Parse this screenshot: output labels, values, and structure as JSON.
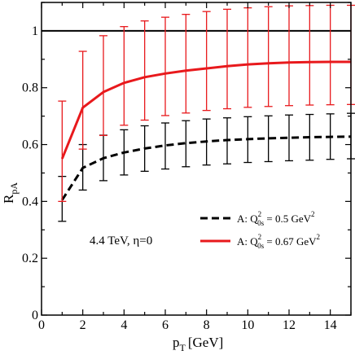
{
  "chart_data": {
    "type": "line",
    "xlabel": "p",
    "xlabel_sub": "T",
    "xlabel_unit": "[GeV]",
    "ylabel": "R",
    "ylabel_sub": "pA",
    "xlim": [
      0,
      15
    ],
    "ylim": [
      0,
      1.1
    ],
    "x_ticks": [
      0,
      2,
      4,
      6,
      8,
      10,
      12,
      14
    ],
    "y_ticks": [
      0,
      0.2,
      0.4,
      0.6,
      0.8,
      1
    ],
    "y_tick_labels": [
      "0",
      "0.2",
      "0.4",
      "0.6",
      "0.8",
      "1"
    ],
    "reference_line": 1,
    "grid": false,
    "legend_position": "center-right",
    "annotation": "4.4 TeV,  η=0",
    "series": [
      {
        "legend_prefix": "A: Q",
        "legend_sup": "2",
        "legend_sub": "0s",
        "legend_value": " = 0.5 GeV",
        "legend_value_sup": "2",
        "color": "#000000",
        "style": "dashed",
        "x": [
          1,
          2,
          3,
          4,
          5,
          6,
          7,
          8,
          9,
          10,
          11,
          12,
          13,
          14,
          15
        ],
        "y": [
          0.405,
          0.518,
          0.552,
          0.572,
          0.586,
          0.597,
          0.605,
          0.611,
          0.616,
          0.619,
          0.622,
          0.624,
          0.626,
          0.627,
          0.628
        ],
        "err_low": [
          0.33,
          0.44,
          0.473,
          0.493,
          0.506,
          0.514,
          0.522,
          0.528,
          0.532,
          0.537,
          0.54,
          0.543,
          0.545,
          0.548,
          0.55
        ],
        "err_high": [
          0.488,
          0.6,
          0.633,
          0.652,
          0.666,
          0.676,
          0.684,
          0.69,
          0.694,
          0.698,
          0.701,
          0.704,
          0.706,
          0.708,
          0.71
        ]
      },
      {
        "legend_prefix": "A: Q",
        "legend_sup": "2",
        "legend_sub": "0s",
        "legend_value": " = 0.67 GeV",
        "legend_value_sup": "2",
        "color": "#e8191c",
        "style": "solid",
        "x": [
          1,
          2,
          3,
          4,
          5,
          6,
          7,
          8,
          9,
          10,
          11,
          12,
          13,
          14,
          15
        ],
        "y": [
          0.55,
          0.73,
          0.785,
          0.817,
          0.837,
          0.85,
          0.86,
          0.868,
          0.876,
          0.882,
          0.886,
          0.889,
          0.89,
          0.891,
          0.891
        ],
        "err_low": [
          0.4,
          0.584,
          0.632,
          0.668,
          0.686,
          0.702,
          0.711,
          0.72,
          0.726,
          0.731,
          0.734,
          0.737,
          0.739,
          0.74,
          0.741
        ],
        "err_high": [
          0.753,
          0.928,
          0.983,
          1.015,
          1.035,
          1.048,
          1.058,
          1.068,
          1.076,
          1.081,
          1.085,
          1.088,
          1.089,
          1.09,
          1.09
        ]
      }
    ]
  }
}
